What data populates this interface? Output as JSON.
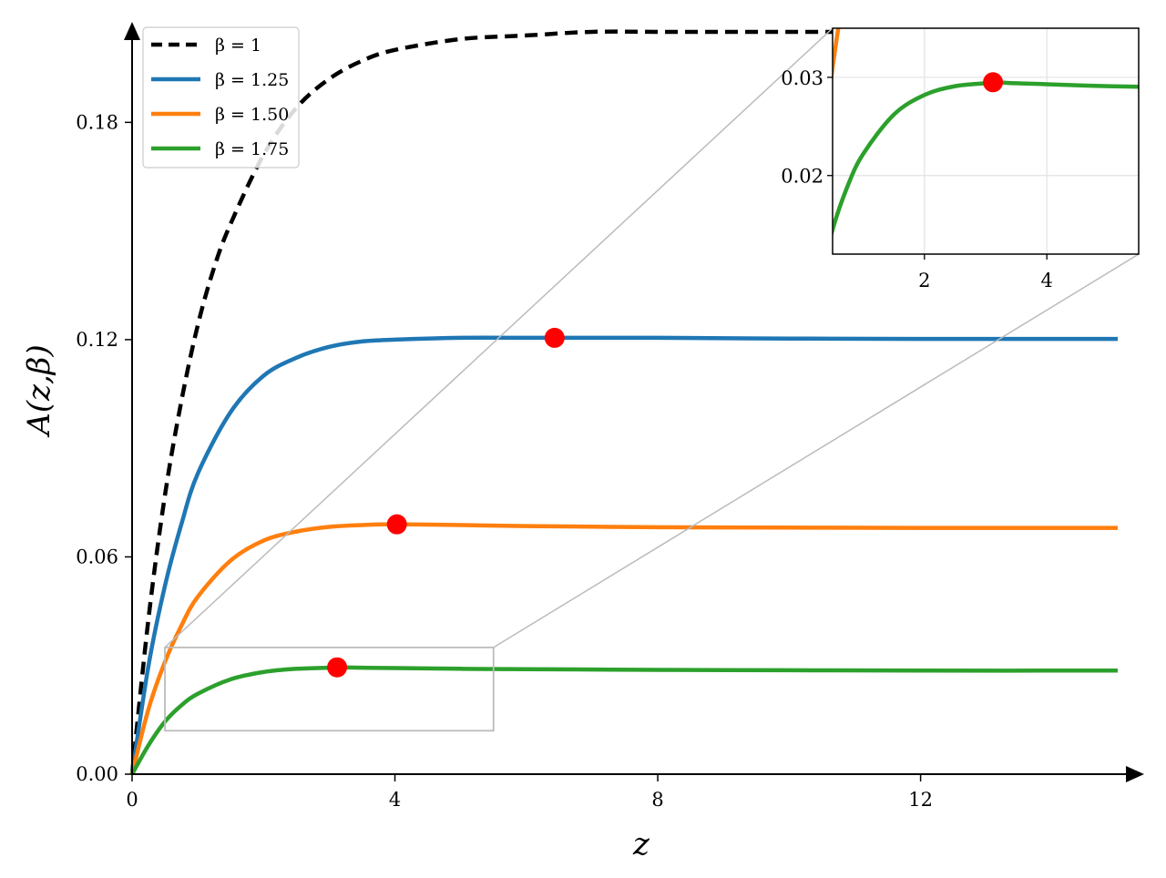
{
  "chart_data": {
    "type": "line",
    "xlabel": "z",
    "ylabel": "A(z,β)",
    "xlim": [
      0,
      15
    ],
    "ylim": [
      0,
      0.207
    ],
    "x_ticks": [
      "0",
      "4",
      "8",
      "12"
    ],
    "y_ticks": [
      "0.00",
      "0.06",
      "0.12",
      "0.18"
    ],
    "legend_position": "top-left",
    "grid": false,
    "series": [
      {
        "name": "β = 1",
        "color": "#000000",
        "dashed": true,
        "x": [
          0,
          0.25,
          0.5,
          0.75,
          1,
          1.25,
          1.5,
          2,
          2.5,
          3,
          3.5,
          4,
          5,
          6,
          7,
          8,
          9,
          10,
          10.7
        ],
        "y": [
          0,
          0.043,
          0.077,
          0.103,
          0.124,
          0.14,
          0.152,
          0.171,
          0.184,
          0.192,
          0.197,
          0.2,
          0.203,
          0.204,
          0.205,
          0.205,
          0.205,
          0.205,
          0.205
        ]
      },
      {
        "name": "β = 1.25",
        "color": "#1f77b4",
        "dashed": false,
        "x": [
          0,
          0.25,
          0.5,
          0.75,
          1,
          1.5,
          2,
          2.5,
          3,
          3.5,
          4,
          5,
          6,
          6.43,
          8,
          10,
          12,
          15
        ],
        "y": [
          0,
          0.03,
          0.052,
          0.069,
          0.083,
          0.1,
          0.11,
          0.115,
          0.118,
          0.1195,
          0.12,
          0.1205,
          0.1205,
          0.1205,
          0.1205,
          0.1203,
          0.1202,
          0.1202
        ]
      },
      {
        "name": "β = 1.50",
        "color": "#ff7f0e",
        "dashed": false,
        "x": [
          0,
          0.25,
          0.5,
          0.75,
          1,
          1.5,
          2,
          2.5,
          3,
          3.5,
          4.03,
          5,
          6,
          8,
          10,
          12,
          15
        ],
        "y": [
          0,
          0.018,
          0.031,
          0.041,
          0.049,
          0.059,
          0.0645,
          0.067,
          0.0683,
          0.0688,
          0.069,
          0.0688,
          0.0685,
          0.0682,
          0.0681,
          0.068,
          0.068
        ]
      },
      {
        "name": "β = 1.75",
        "color": "#2ca02c",
        "dashed": false,
        "x": [
          0,
          0.25,
          0.5,
          0.75,
          1,
          1.5,
          2,
          2.5,
          3,
          3.12,
          3.5,
          4,
          5,
          6,
          8,
          10,
          12,
          15
        ],
        "y": [
          0,
          0.008,
          0.0145,
          0.019,
          0.0222,
          0.0262,
          0.0282,
          0.0291,
          0.0294,
          0.0295,
          0.0294,
          0.0293,
          0.0291,
          0.029,
          0.0288,
          0.0287,
          0.0286,
          0.0286
        ]
      }
    ],
    "markers": [
      {
        "series": "β = 1.25",
        "x": 6.43,
        "y": 0.1205
      },
      {
        "series": "β = 1.50",
        "x": 4.03,
        "y": 0.069
      },
      {
        "series": "β = 1.75",
        "x": 3.12,
        "y": 0.0295
      }
    ],
    "marker_color": "#ff0000",
    "zoom_region": {
      "xlim": [
        0.5,
        5.5
      ],
      "ylim": [
        0.012,
        0.035
      ]
    },
    "inset": {
      "xlim": [
        0.5,
        5.5
      ],
      "ylim": [
        0.012,
        0.035
      ],
      "x_ticks": [
        2,
        4
      ],
      "y_ticks": [
        0.02,
        0.03
      ],
      "x_tick_labels": [
        "2",
        "4"
      ],
      "y_tick_labels": [
        "0.02",
        "0.03"
      ],
      "grid": true
    }
  }
}
